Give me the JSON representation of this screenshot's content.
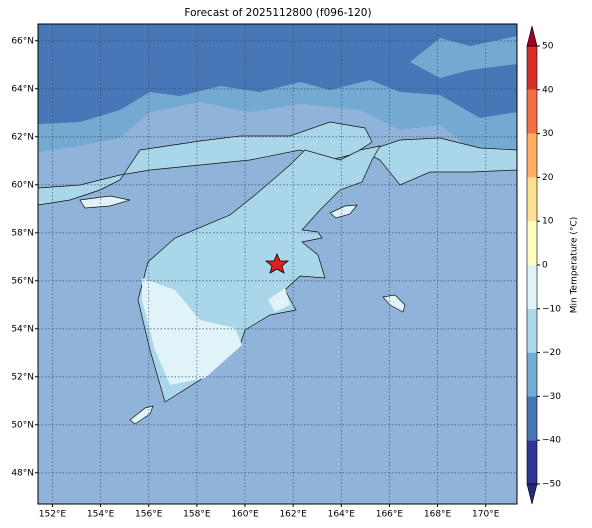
{
  "map": {
    "title": "Forecast of 2025112800 (f096-120)",
    "xlim": [
      151.4,
      171.3
    ],
    "ylim": [
      46.7,
      66.7
    ],
    "xticks": [
      {
        "value": 152,
        "label": "152°E"
      },
      {
        "value": 154,
        "label": "154°E"
      },
      {
        "value": 156,
        "label": "156°E"
      },
      {
        "value": 158,
        "label": "158°E"
      },
      {
        "value": 160,
        "label": "160°E"
      },
      {
        "value": 162,
        "label": "162°E"
      },
      {
        "value": 164,
        "label": "164°E"
      },
      {
        "value": 166,
        "label": "166°E"
      },
      {
        "value": 168,
        "label": "168°E"
      },
      {
        "value": 170,
        "label": "170°E"
      }
    ],
    "yticks": [
      {
        "value": 48,
        "label": "48°N"
      },
      {
        "value": 50,
        "label": "50°N"
      },
      {
        "value": 52,
        "label": "52°N"
      },
      {
        "value": 54,
        "label": "54°N"
      },
      {
        "value": 56,
        "label": "56°N"
      },
      {
        "value": 58,
        "label": "58°N"
      },
      {
        "value": 60,
        "label": "60°N"
      },
      {
        "value": 62,
        "label": "62°N"
      },
      {
        "value": 64,
        "label": "64°N"
      },
      {
        "value": 66,
        "label": "66°N"
      }
    ],
    "grid": true
  },
  "colorbar": {
    "label": "Min Temperature (°C)",
    "lim": [
      -50,
      50
    ],
    "ticks": [
      {
        "value": -50,
        "label": "−50"
      },
      {
        "value": -40,
        "label": "−40"
      },
      {
        "value": -30,
        "label": "−30"
      },
      {
        "value": -20,
        "label": "−20"
      },
      {
        "value": -10,
        "label": "−10"
      },
      0,
      10,
      20,
      30,
      40,
      50
    ],
    "colors": [
      "#313695",
      "#4575b4",
      "#74add1",
      "#abd9e9",
      "#e0f3f8",
      "#ffffbf",
      "#fee090",
      "#fdae61",
      "#f46d43",
      "#d73027"
    ],
    "under_color": "#232a80",
    "over_color": "#a50026"
  }
}
